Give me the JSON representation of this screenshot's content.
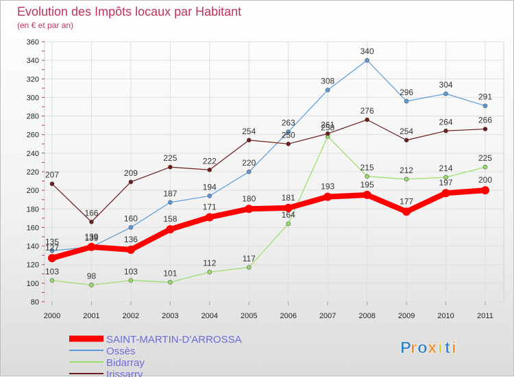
{
  "chart_data": {
    "type": "line",
    "title": "Evolution des Impôts locaux par Habitant",
    "subtitle": "(en € et par an)",
    "xlabel": "",
    "ylabel": "",
    "x": [
      "2000",
      "2001",
      "2002",
      "2003",
      "2004",
      "2005",
      "2006",
      "2007",
      "2008",
      "2009",
      "2010",
      "2011"
    ],
    "ylim": [
      80,
      360
    ],
    "yticks": [
      80,
      100,
      120,
      140,
      160,
      180,
      200,
      220,
      240,
      260,
      280,
      300,
      320,
      340,
      360
    ],
    "grid": true,
    "legend_position": "bottom-left",
    "series": [
      {
        "name": "SAINT-MARTIN-D'ARROSSA",
        "color": "#ff0000",
        "values": [
          127,
          139,
          136,
          158,
          171,
          180,
          181,
          193,
          195,
          177,
          197,
          200
        ]
      },
      {
        "name": "Ossès",
        "color": "#5a9ad6",
        "values": [
          135,
          139,
          160,
          187,
          194,
          220,
          263,
          308,
          340,
          296,
          304,
          291
        ]
      },
      {
        "name": "Bidarray",
        "color": "#99dd66",
        "values": [
          103,
          98,
          103,
          101,
          112,
          117,
          164,
          258,
          215,
          212,
          214,
          225
        ]
      },
      {
        "name": "Irissarry",
        "color": "#6b1c1c",
        "values": [
          207,
          166,
          209,
          225,
          222,
          254,
          250,
          261,
          276,
          254,
          264,
          266
        ]
      }
    ]
  },
  "logo": {
    "letters": [
      "P",
      "r",
      "o",
      "x",
      "i",
      "t",
      "i"
    ],
    "colors": [
      "#2f7fc4",
      "#f08c1e",
      "#2f7fc4",
      "#f08c1e",
      "#c8d22a",
      "#2f7fc4",
      "#f08c1e"
    ]
  }
}
